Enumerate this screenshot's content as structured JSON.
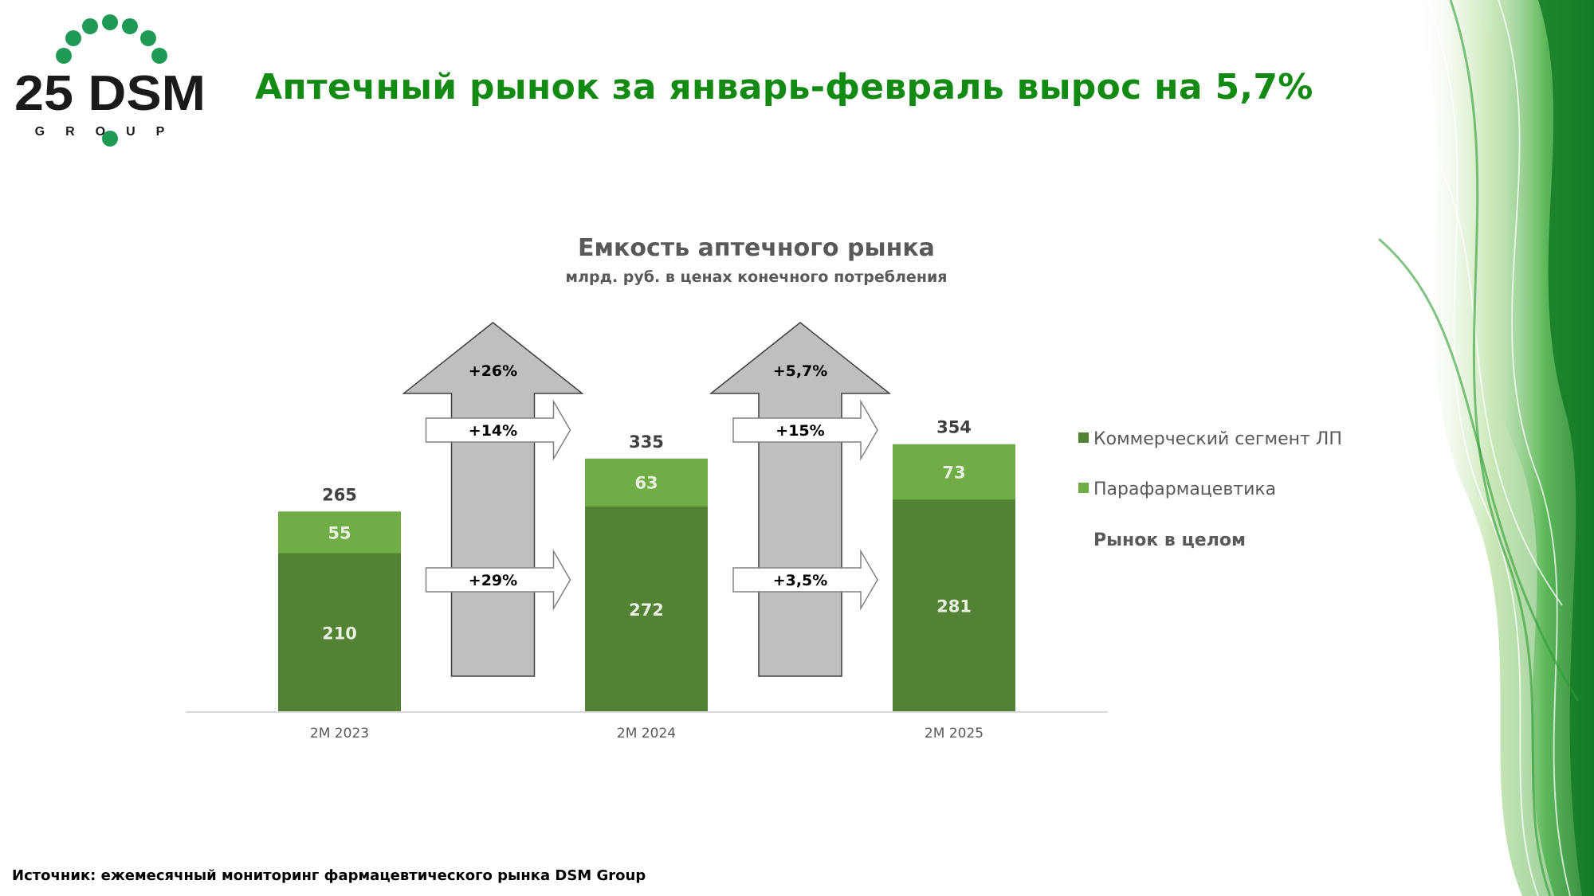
{
  "header": {
    "title": "Аптечный рынок за январь-февраль вырос на 5,7%",
    "logo_text": "25 DSM",
    "logo_subtext": "GROUP"
  },
  "footer": {
    "source": "Источник: ежемесячный мониторинг фармацевтического рынка DSM Group"
  },
  "colors": {
    "title": "#138a13",
    "commercial": "#548235",
    "parapharm": "#70ad47",
    "arrow_grey": "#bfbfbf"
  },
  "chart_data": {
    "type": "bar",
    "stacked": true,
    "title": "Емкость аптечного рынка",
    "subtitle": "млрд. руб. в ценах конечного потребления",
    "categories": [
      "2М 2023",
      "2М 2024",
      "2М 2025"
    ],
    "series": [
      {
        "name": "Коммерческий сегмент ЛП",
        "values": [
          210,
          272,
          281
        ]
      },
      {
        "name": "Парафармацевтика",
        "values": [
          55,
          63,
          73
        ]
      }
    ],
    "totals": {
      "name": "Рынок в целом",
      "values": [
        265,
        335,
        354
      ]
    },
    "ylim": [
      0,
      380
    ],
    "growth": [
      {
        "from": "2М 2023",
        "to": "2М 2024",
        "total": "+26%",
        "parapharm": "+14%",
        "commercial": "+29%"
      },
      {
        "from": "2М 2024",
        "to": "2М 2025",
        "total": "+5,7%",
        "parapharm": "+15%",
        "commercial": "+3,5%"
      }
    ],
    "legend_position": "right"
  }
}
